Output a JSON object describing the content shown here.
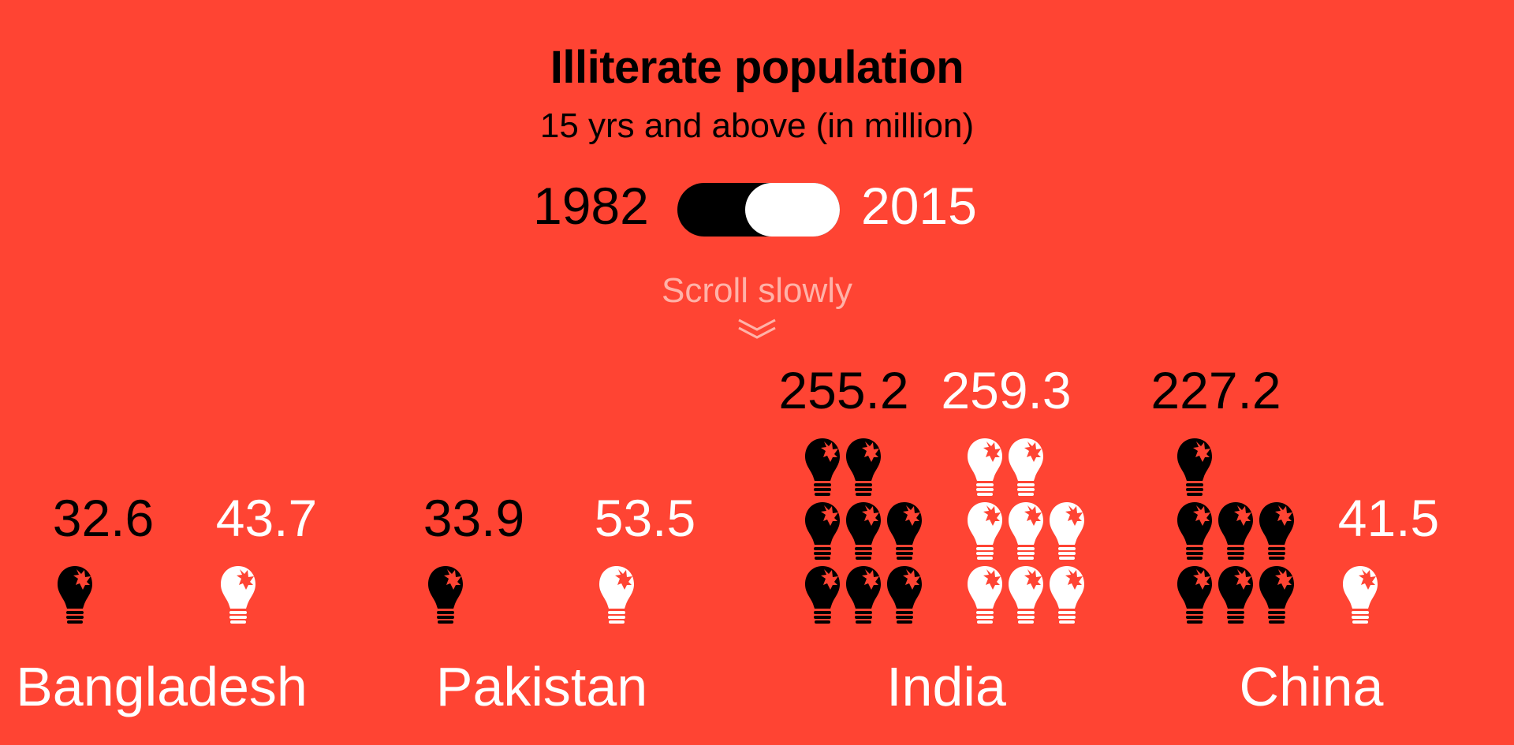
{
  "header": {
    "title": "Illiterate population",
    "subtitle": "15 yrs and above (in million)"
  },
  "toggle": {
    "left_label": "1982",
    "right_label": "2015",
    "selected": "2015"
  },
  "scroll_hint": "Scroll slowly",
  "colors": {
    "background": "#ff4433",
    "year_1982": "#000000",
    "year_2015": "#ffffff",
    "hint": "#ffb2a8"
  },
  "chart_data": {
    "type": "pictogram",
    "unit": "million",
    "icon": "light-bulb-icon",
    "categories": [
      "Bangladesh",
      "Pakistan",
      "India",
      "China"
    ],
    "series": [
      {
        "name": "1982",
        "values": [
          32.6,
          33.9,
          255.2,
          227.2
        ]
      },
      {
        "name": "2015",
        "values": [
          43.7,
          53.5,
          259.3,
          41.5
        ]
      }
    ]
  }
}
